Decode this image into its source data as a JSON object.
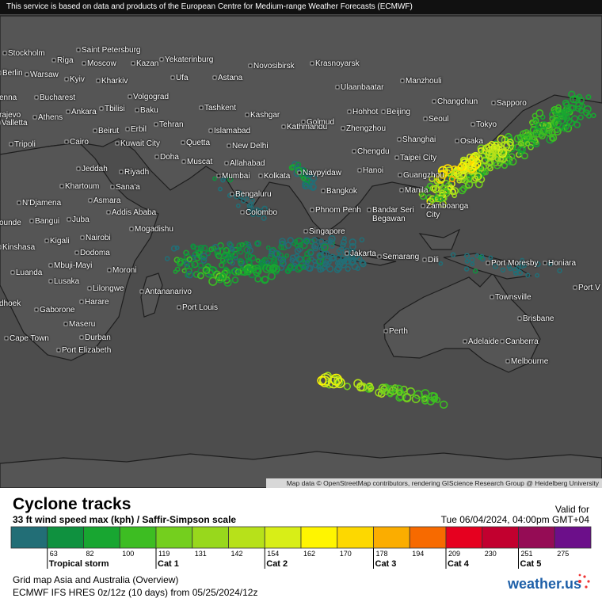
{
  "header": {
    "notice": "This service is based on data and products of the European Centre for Medium-range Weather Forecasts (ECMWF)"
  },
  "map": {
    "cities": [
      "Stockholm",
      "Saint Petersburg",
      "Riga",
      "Moscow",
      "Kazan",
      "Yekaterinburg",
      "Novosibirsk",
      "Krasnoyarsk",
      "Berlin",
      "Warsaw",
      "Kyiv",
      "Kharkiv",
      "Ufa",
      "Astana",
      "Manzhouli",
      "Ulaanbaatar",
      "enna",
      "Bucharest",
      "Volgograd",
      "Changchun",
      "Sapporo",
      "Tbilisi",
      "Baku",
      "Tashkent",
      "Hohhot",
      "Beijing",
      "Seoul",
      "rajevo",
      "Athens",
      "Ankara",
      "Kashgar",
      "Valletta",
      "Tehran",
      "Islamabad",
      "Golmud",
      "Zhengzhou",
      "Tokyo",
      "Beirut",
      "Erbil",
      "Osaka",
      "Tripoli",
      "Cairo",
      "Kuwait City",
      "Quetta",
      "New Delhi",
      "Kathmandu",
      "Shanghai",
      "Chengdu",
      "Doha",
      "Muscat",
      "Allahabad",
      "Taipei City",
      "Jeddah",
      "Riyadh",
      "Mumbai",
      "Kolkata",
      "Naypyidaw",
      "Hanoi",
      "Guangzhou",
      "Khartoum",
      "Sana'a",
      "Bengaluru",
      "Bangkok",
      "Manila",
      "Asmara",
      "Addis Ababa",
      "N'Djamena",
      "Colombo",
      "Phnom Penh",
      "Bandar Seri Begawan",
      "Zamboanga City",
      "Bangui",
      "Juba",
      "ounde",
      "Mogadishu",
      "Nairobi",
      "Kigali",
      "Singapore",
      "Kinshasa",
      "Dodoma",
      "Mbuji-Mayi",
      "Moroni",
      "Jakarta",
      "Semarang",
      "Dili",
      "Port Moresby",
      "Honiara",
      "Luanda",
      "Lusaka",
      "Lilongwe",
      "Antananarivo",
      "Townsville",
      "Port V",
      "dhoek",
      "Harare",
      "Port Louis",
      "Gaborone",
      "Maseru",
      "Brisbane",
      "Perth",
      "Adelaide",
      "Canberra",
      "Cape Town",
      "Durban",
      "Port Elizabeth",
      "Melbourne"
    ],
    "attribution": "Map data © OpenStreetMap contributors, rendering GIScience Research Group @ Heidelberg University"
  },
  "legend": {
    "title": "Cyclone tracks",
    "subtitle": "33 ft wind speed max (kph) / Saffir-Simpson scale",
    "valid_label": "Valid for",
    "valid_time": "Tue 06/04/2024, 04:00pm GMT+04",
    "scale": {
      "colors": [
        "#226e76",
        "#0f913f",
        "#18a631",
        "#3dbd22",
        "#74cf1e",
        "#98d81c",
        "#b7e11a",
        "#d8ee17",
        "#fff500",
        "#fdd800",
        "#fbad00",
        "#f76a00",
        "#e6001f",
        "#c2002f",
        "#950c55",
        "#6c0f8a"
      ],
      "ticks": [
        63,
        82,
        100,
        119,
        131,
        142,
        154,
        162,
        170,
        178,
        194,
        209,
        230,
        251,
        275
      ],
      "categories": [
        {
          "label": "Tropical storm",
          "from": 63
        },
        {
          "label": "Cat 1",
          "from": 119
        },
        {
          "label": "Cat 2",
          "from": 154
        },
        {
          "label": "Cat 3",
          "from": 178
        },
        {
          "label": "Cat 4",
          "from": 209
        },
        {
          "label": "Cat 5",
          "from": 251
        }
      ]
    }
  },
  "footer": {
    "map_name": "Grid map Asia and Australia (Overview)",
    "model_run": "ECMWF IFS HRES 0z/12z (10 days) from  05/25/2024/12z",
    "logo": "weather.us"
  }
}
